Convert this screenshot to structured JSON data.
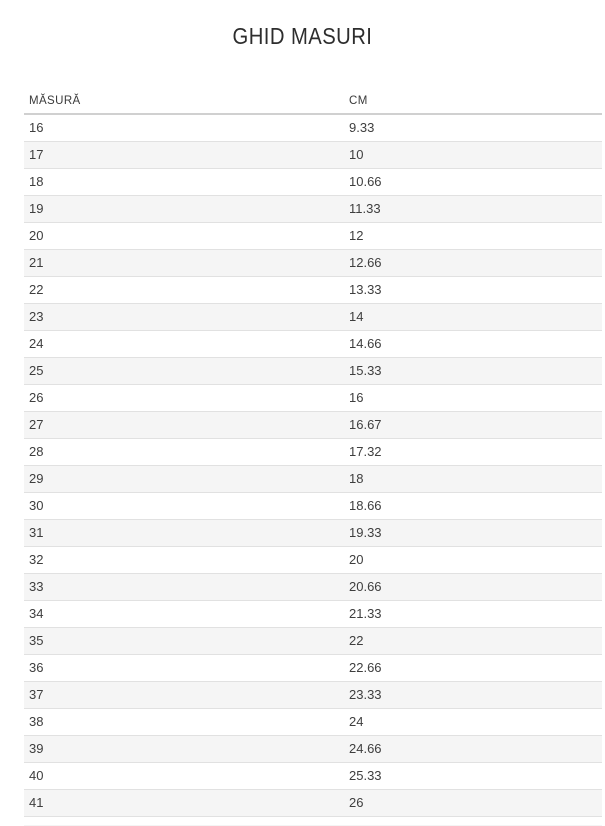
{
  "page": {
    "title": "GHID MASURI"
  },
  "table": {
    "columns": [
      {
        "label": "MĂSURĂ"
      },
      {
        "label": "CM"
      }
    ],
    "rows": [
      {
        "size": "16",
        "cm": "9.33"
      },
      {
        "size": "17",
        "cm": "10"
      },
      {
        "size": "18",
        "cm": "10.66"
      },
      {
        "size": "19",
        "cm": "11.33"
      },
      {
        "size": "20",
        "cm": "12"
      },
      {
        "size": "21",
        "cm": "12.66"
      },
      {
        "size": "22",
        "cm": "13.33"
      },
      {
        "size": "23",
        "cm": "14"
      },
      {
        "size": "24",
        "cm": "14.66"
      },
      {
        "size": "25",
        "cm": "15.33"
      },
      {
        "size": "26",
        "cm": "16"
      },
      {
        "size": "27",
        "cm": "16.67"
      },
      {
        "size": "28",
        "cm": "17.32"
      },
      {
        "size": "29",
        "cm": "18"
      },
      {
        "size": "30",
        "cm": "18.66"
      },
      {
        "size": "31",
        "cm": "19.33"
      },
      {
        "size": "32",
        "cm": "20"
      },
      {
        "size": "33",
        "cm": "20.66"
      },
      {
        "size": "34",
        "cm": "21.33"
      },
      {
        "size": "35",
        "cm": "22"
      },
      {
        "size": "36",
        "cm": "22.66"
      },
      {
        "size": "37",
        "cm": "23.33"
      },
      {
        "size": "38",
        "cm": "24"
      },
      {
        "size": "39",
        "cm": "24.66"
      },
      {
        "size": "40",
        "cm": "25.33"
      },
      {
        "size": "41",
        "cm": "26"
      }
    ]
  },
  "colors": {
    "title_text": "#2d2d2d",
    "header_text": "#3a3a3a",
    "body_text": "#3e3e3e",
    "row_alt_bg": "#f5f5f5",
    "row_border": "#e1e1e1",
    "header_border": "#d0d0d0"
  }
}
